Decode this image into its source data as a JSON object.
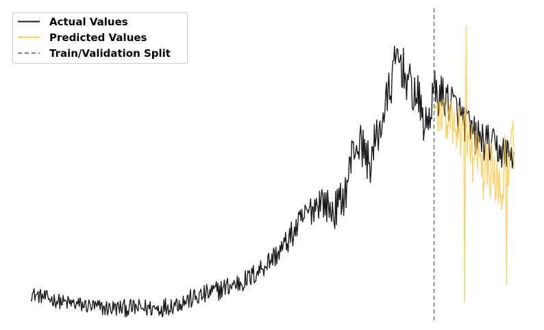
{
  "chart_data": {
    "type": "line",
    "title": "",
    "xlabel": "",
    "ylabel": "",
    "axes_visible": false,
    "grid": false,
    "legend_placement": "top-left",
    "legend": [
      {
        "label": "Actual Values",
        "color": "#1a1a1a",
        "style": "solid"
      },
      {
        "label": "Predicted Values",
        "color": "#ffc94a",
        "style": "solid"
      },
      {
        "label": "Train/Validation Split",
        "color": "#777777",
        "style": "dashed"
      }
    ],
    "n_points": 600,
    "split_index": 500,
    "ylim": [
      0,
      100
    ],
    "series": [
      {
        "name": "Actual Values",
        "color": "#1a1a1a",
        "anchors": [
          [
            0,
            5
          ],
          [
            40,
            2
          ],
          [
            90,
            0
          ],
          [
            160,
            0
          ],
          [
            210,
            4
          ],
          [
            270,
            10
          ],
          [
            310,
            20
          ],
          [
            340,
            32
          ],
          [
            360,
            38
          ],
          [
            375,
            33
          ],
          [
            390,
            40
          ],
          [
            400,
            56
          ],
          [
            410,
            57
          ],
          [
            420,
            50
          ],
          [
            440,
            70
          ],
          [
            455,
            88
          ],
          [
            470,
            77
          ],
          [
            480,
            73
          ],
          [
            490,
            62
          ],
          [
            500,
            75
          ],
          [
            520,
            72
          ],
          [
            550,
            60
          ],
          [
            580,
            55
          ],
          [
            599,
            53
          ]
        ],
        "noise_amplitude": [
          [
            0,
            2.5
          ],
          [
            300,
            4
          ],
          [
            360,
            6
          ],
          [
            430,
            8
          ],
          [
            500,
            8
          ],
          [
            599,
            6
          ]
        ]
      },
      {
        "name": "Predicted Values",
        "color": "#ffc94a",
        "start_index": 500,
        "anchors": [
          [
            500,
            69
          ],
          [
            530,
            62
          ],
          [
            560,
            48
          ],
          [
            580,
            45
          ],
          [
            599,
            55
          ]
        ],
        "noise_amplitude": [
          [
            500,
            7
          ],
          [
            599,
            14
          ]
        ],
        "extremes": [
          [
            540,
            98
          ],
          [
            538,
            2
          ],
          [
            590,
            8
          ]
        ]
      }
    ]
  }
}
